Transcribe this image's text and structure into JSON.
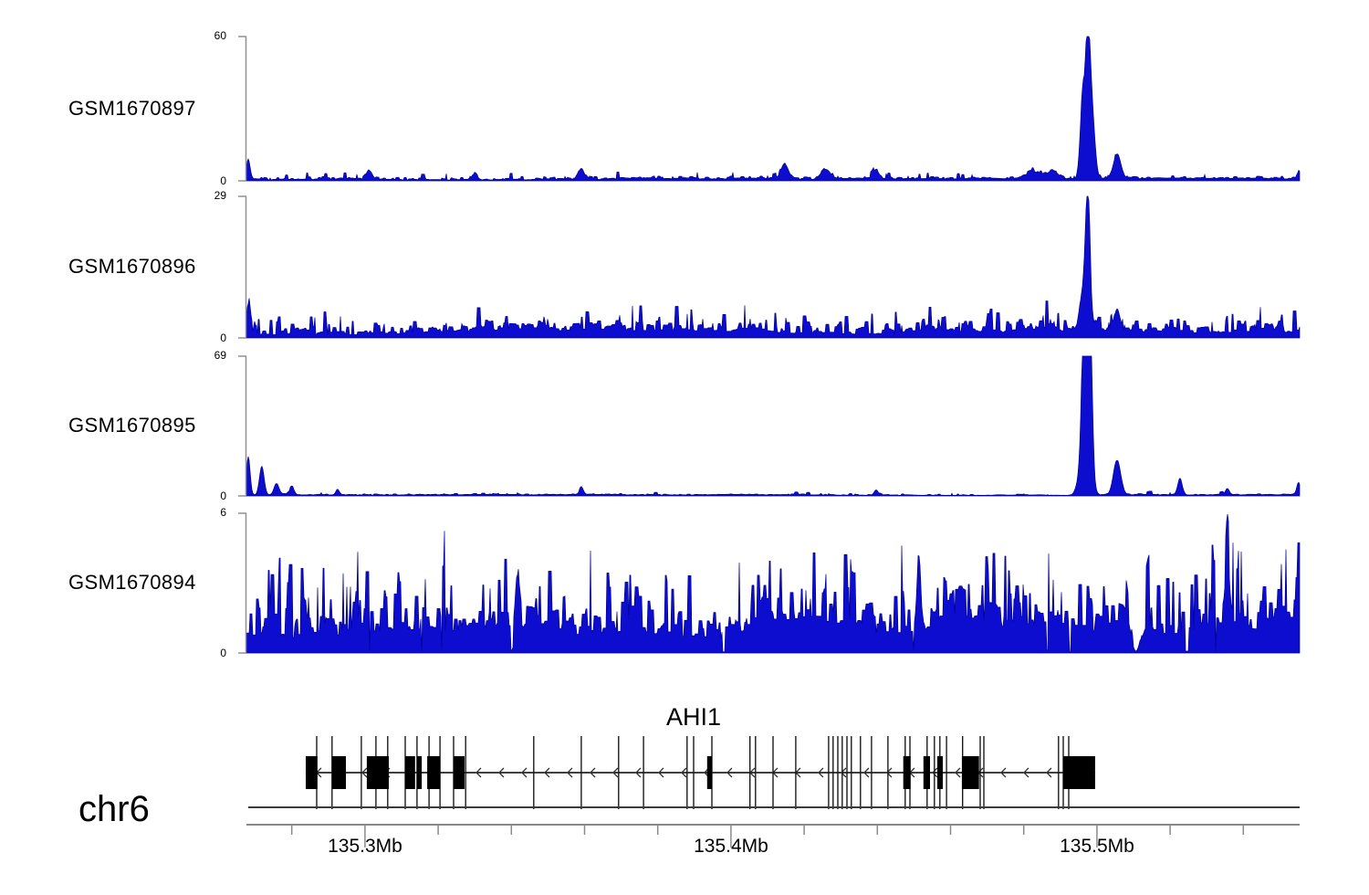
{
  "figure": {
    "chromosome_label": "chr6",
    "gene_label": "AHI1"
  },
  "tracks": [
    {
      "label": "GSM1670897",
      "ymax_label": "60",
      "ymin_label": "0"
    },
    {
      "label": "GSM1670896",
      "ymax_label": "29",
      "ymin_label": "0"
    },
    {
      "label": "GSM1670895",
      "ymax_label": "69",
      "ymin_label": "0"
    },
    {
      "label": "GSM1670894",
      "ymax_label": "6",
      "ymin_label": "0"
    }
  ],
  "axis": {
    "tick_labels": [
      "135.3Mb",
      "135.4Mb",
      "135.5Mb"
    ]
  },
  "chart_data": {
    "type": "area",
    "title": "",
    "description": "Genome browser coverage tracks (read pileup) over the AHI1 locus on chromosome 6",
    "chromosome": "chr6",
    "x_range_mb": [
      135.2676,
      135.5554
    ],
    "x_ticks_mb": [
      135.3,
      135.4,
      135.5
    ],
    "x_tick_labels": [
      "135.3Mb",
      "135.4Mb",
      "135.5Mb"
    ],
    "x_minor_tick_interval_mb": 0.02,
    "legend": "none",
    "grid": false,
    "series": [
      {
        "name": "GSM1670897",
        "ylim": [
          0,
          60
        ],
        "noise": {
          "base": 0.6,
          "jitter": 1.3,
          "spike_prob": 0.1,
          "spike_mag": 2.6,
          "seed": 11
        },
        "peaks": [
          [
            135.2681,
            8,
            2
          ],
          [
            135.3012,
            3.5,
            3
          ],
          [
            135.3299,
            2.5,
            3
          ],
          [
            135.3591,
            4.5,
            3
          ],
          [
            135.4147,
            6,
            4
          ],
          [
            135.4259,
            4,
            5
          ],
          [
            135.4397,
            3.5,
            3
          ],
          [
            135.483,
            2.5,
            9
          ],
          [
            135.488,
            3,
            5
          ],
          [
            135.496,
            28,
            2.5
          ],
          [
            135.4975,
            60,
            2.8
          ],
          [
            135.4988,
            22,
            3
          ],
          [
            135.5055,
            10,
            4
          ],
          [
            135.5551,
            3,
            2
          ]
        ]
      },
      {
        "name": "GSM1670896",
        "ylim": [
          0,
          29
        ],
        "noise": {
          "base": 1.0,
          "jitter": 3.0,
          "spike_prob": 0.15,
          "spike_mag": 4,
          "seed": 22
        },
        "peaks": [
          [
            135.2681,
            6,
            2
          ],
          [
            135.496,
            7,
            3
          ],
          [
            135.4975,
            29,
            2.5
          ],
          [
            135.5055,
            4,
            3
          ]
        ]
      },
      {
        "name": "GSM1670895",
        "ylim": [
          0,
          69
        ],
        "noise": {
          "base": 0.4,
          "jitter": 0.7,
          "spike_prob": 0.04,
          "spike_mag": 1.6,
          "seed": 33
        },
        "peaks": [
          [
            135.2681,
            19,
            2
          ],
          [
            135.2718,
            14,
            2.5
          ],
          [
            135.2758,
            5.5,
            2.5
          ],
          [
            135.28,
            3.5,
            2.5
          ],
          [
            135.2925,
            2.5,
            2
          ],
          [
            135.3591,
            3.5,
            2
          ],
          [
            135.4397,
            2.5,
            2
          ],
          [
            135.4969,
            40,
            5
          ],
          [
            135.4965,
            69,
            2.2
          ],
          [
            135.4982,
            62,
            2.2
          ],
          [
            135.5055,
            17,
            4
          ],
          [
            135.5227,
            8,
            2.5
          ],
          [
            135.5357,
            3,
            2
          ],
          [
            135.5551,
            6,
            2
          ]
        ]
      },
      {
        "name": "GSM1670894",
        "ylim": [
          0,
          6
        ],
        "noise": {
          "base": 0.8,
          "jitter": 2.1,
          "spike_prob": 0.3,
          "spike_mag": 2.6,
          "seed": 44,
          "dropout_prob": 0.03
        },
        "peaks": [
          [
            135.3416,
            2.2,
            2
          ],
          [
            135.4514,
            3.2,
            2
          ],
          [
            135.5357,
            2.4,
            2
          ]
        ],
        "notches": [
          [
            135.5107,
            0.95,
            6
          ]
        ]
      }
    ],
    "gene_track": {
      "gene": "AHI1",
      "strand": "-",
      "span_mb": [
        135.2838,
        135.4995
      ],
      "exon_boxes_mb": [
        [
          135.2838,
          135.287
        ],
        [
          135.291,
          135.2948
        ],
        [
          135.3005,
          135.3065
        ],
        [
          135.311,
          135.3137
        ],
        [
          135.3142,
          135.3155
        ],
        [
          135.317,
          135.3205
        ],
        [
          135.3242,
          135.3272
        ],
        [
          135.3935,
          135.3948
        ],
        [
          135.4471,
          135.4491
        ],
        [
          135.4526,
          135.4544
        ],
        [
          135.4564,
          135.4579
        ],
        [
          135.4631,
          135.4678
        ],
        [
          135.4908,
          135.4995
        ]
      ],
      "exon_lines_mb": [
        135.2868,
        135.291,
        135.299,
        135.303,
        135.3062,
        135.311,
        135.3142,
        135.3175,
        135.3205,
        135.3242,
        135.3275,
        135.3461,
        135.3591,
        135.3693,
        135.3761,
        135.388,
        135.3898,
        135.3948,
        135.4052,
        135.4067,
        135.4115,
        135.4177,
        135.4267,
        135.4279,
        135.4292,
        135.4304,
        135.4317,
        135.4329,
        135.4354,
        135.4384,
        135.4429,
        135.4476,
        135.4489,
        135.4536,
        135.4556,
        135.4571,
        135.4589,
        135.4633,
        135.4681,
        135.4691,
        135.4895,
        135.4908,
        135.4923
      ]
    },
    "colors": {
      "signal_fill": "#0d0dd0",
      "signal_stroke": "#000090",
      "track_axis": "#909090",
      "genome_axis": "#8a8a8a",
      "genome_line": "#3c3c3c",
      "gene": "#000000",
      "arrow": "#333333"
    }
  }
}
